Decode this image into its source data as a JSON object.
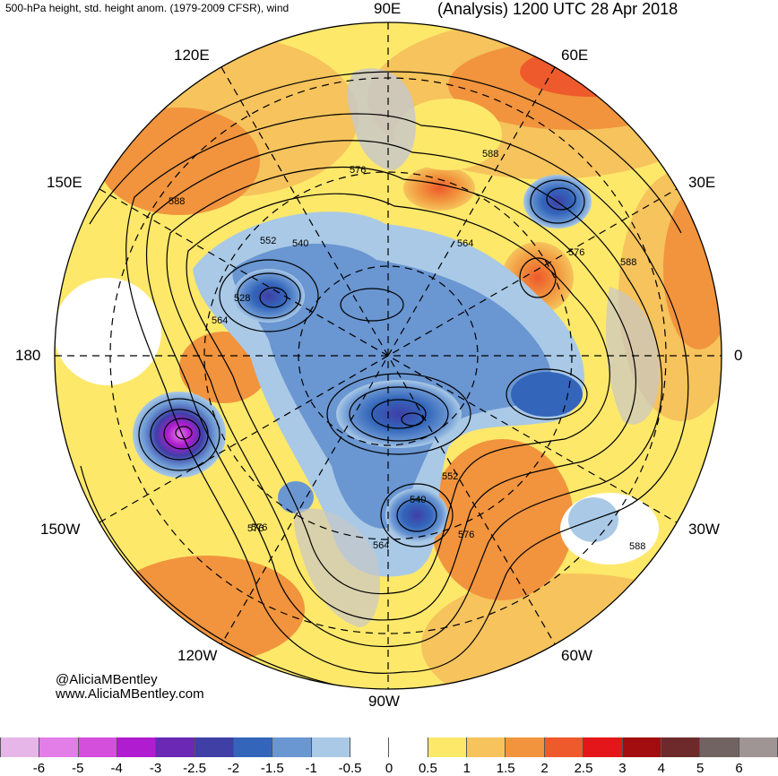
{
  "header": {
    "left_title": "500-hPa height, std. height anom. (1979-2009 CFSR), wind",
    "right_title": "(Analysis) 1200 UTC 28 Apr 2018"
  },
  "longitude_labels": {
    "e90": "90E",
    "e60": "60E",
    "e120": "120E",
    "e150": "150E",
    "e30": "30E",
    "w180": "180",
    "zero": "0",
    "w150": "150W",
    "w30": "30W",
    "w120": "120W",
    "w60": "60W",
    "w90": "90W"
  },
  "contour_labels": [
    "588",
    "576",
    "552",
    "540",
    "564",
    "528",
    "564",
    "576",
    "588",
    "576",
    "588",
    "552",
    "540",
    "576",
    "564",
    "576",
    "588"
  ],
  "credit": {
    "handle": "@AliciaMBentley",
    "url": "www.AliciaMBentley.com"
  },
  "colorbar": {
    "colors": [
      "#e7b6e8",
      "#e37ee8",
      "#d44fdb",
      "#b01ccf",
      "#6a28b4",
      "#3f3fa6",
      "#3366bb",
      "#6a96d2",
      "#a9c9e6",
      "#ffffff",
      "#ffffff",
      "#fde86a",
      "#f6c35c",
      "#f1943d",
      "#ee5a2c",
      "#e4161a",
      "#a30d0f",
      "#6e2a2a",
      "#726363",
      "#a09595"
    ],
    "ticks": [
      "-6",
      "-5",
      "-4",
      "-3",
      "-2.5",
      "-2",
      "-1.5",
      "-1",
      "-0.5",
      "0",
      "0.5",
      "1",
      "1.5",
      "2",
      "2.5",
      "3",
      "4",
      "5",
      "6"
    ]
  }
}
